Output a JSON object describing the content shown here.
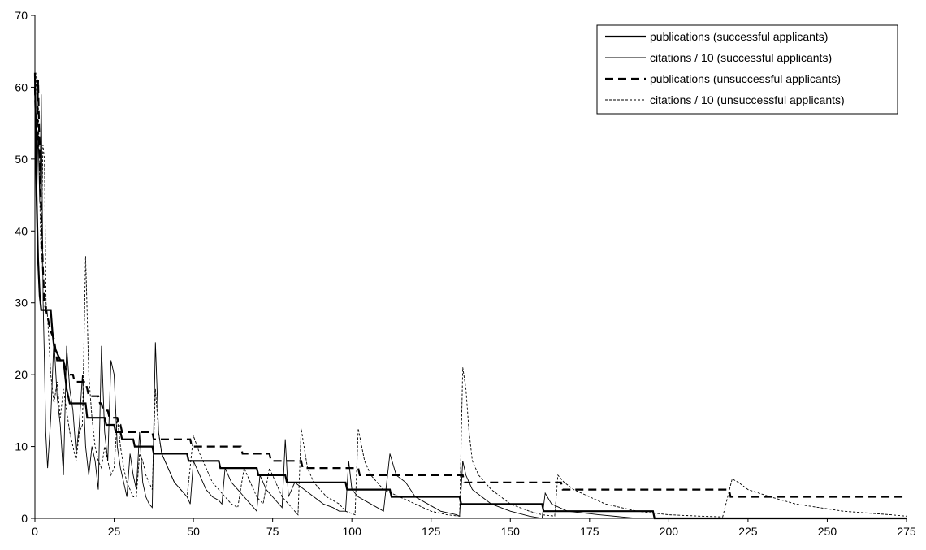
{
  "chart_data": {
    "type": "line",
    "title": "",
    "xlabel": "",
    "ylabel": "",
    "xlim": [
      0,
      275
    ],
    "ylim": [
      0,
      70
    ],
    "x_ticks": [
      "0",
      "25",
      "50",
      "75",
      "100",
      "125",
      "150",
      "175",
      "200",
      "225",
      "250",
      "275"
    ],
    "y_ticks": [
      "0",
      "10",
      "20",
      "30",
      "40",
      "50",
      "60",
      "70"
    ],
    "grid": false,
    "legend_position": "top-right",
    "series": [
      {
        "name": "publications (successful applicants)",
        "style": "solid-thick",
        "color": "#000000",
        "points": [
          [
            0,
            62
          ],
          [
            0.5,
            45
          ],
          [
            1,
            36
          ],
          [
            1.5,
            31
          ],
          [
            2,
            29
          ],
          [
            5,
            29
          ],
          [
            5.5,
            26
          ],
          [
            6,
            24
          ],
          [
            7,
            23
          ],
          [
            8,
            22
          ],
          [
            9,
            22
          ],
          [
            10,
            18
          ],
          [
            11,
            16
          ],
          [
            16,
            16
          ],
          [
            16.5,
            14
          ],
          [
            22,
            14
          ],
          [
            22.5,
            13
          ],
          [
            25,
            13
          ],
          [
            25.5,
            12
          ],
          [
            27,
            12
          ],
          [
            27.5,
            11
          ],
          [
            31,
            11
          ],
          [
            31.5,
            10
          ],
          [
            37,
            10
          ],
          [
            37.5,
            9
          ],
          [
            48,
            9
          ],
          [
            48.5,
            8
          ],
          [
            58,
            8
          ],
          [
            58.5,
            7
          ],
          [
            70,
            7
          ],
          [
            70.5,
            6
          ],
          [
            79,
            6
          ],
          [
            79.5,
            5
          ],
          [
            98,
            5
          ],
          [
            98.5,
            4
          ],
          [
            112,
            4
          ],
          [
            112.5,
            3
          ],
          [
            134,
            3
          ],
          [
            134.5,
            2
          ],
          [
            160,
            2
          ],
          [
            160.5,
            1
          ],
          [
            195,
            1
          ],
          [
            195.5,
            0
          ],
          [
            275,
            0
          ]
        ]
      },
      {
        "name": "citations / 10 (successful applicants)",
        "style": "solid-thin",
        "color": "#000000",
        "points": [
          [
            0,
            58
          ],
          [
            0.5,
            43
          ],
          [
            1,
            54
          ],
          [
            1.5,
            44
          ],
          [
            2,
            59
          ],
          [
            2.6,
            30
          ],
          [
            3,
            22
          ],
          [
            3.4,
            12
          ],
          [
            4,
            7
          ],
          [
            5,
            14
          ],
          [
            6,
            25
          ],
          [
            7,
            17
          ],
          [
            8,
            13
          ],
          [
            9,
            6
          ],
          [
            10,
            24
          ],
          [
            11,
            18
          ],
          [
            12,
            15
          ],
          [
            13,
            9
          ],
          [
            14,
            13
          ],
          [
            15,
            20
          ],
          [
            16,
            10
          ],
          [
            17,
            6
          ],
          [
            18,
            10
          ],
          [
            19,
            8
          ],
          [
            20,
            4
          ],
          [
            21,
            24
          ],
          [
            22,
            12
          ],
          [
            23,
            8
          ],
          [
            24,
            22
          ],
          [
            25,
            20
          ],
          [
            26,
            10
          ],
          [
            27,
            7
          ],
          [
            28,
            5
          ],
          [
            29,
            3
          ],
          [
            30,
            9
          ],
          [
            31,
            6
          ],
          [
            32,
            4
          ],
          [
            33,
            12
          ],
          [
            34,
            5
          ],
          [
            35,
            3
          ],
          [
            36,
            2
          ],
          [
            37,
            1.5
          ],
          [
            38,
            24.5
          ],
          [
            39,
            12
          ],
          [
            40,
            9
          ],
          [
            42,
            7
          ],
          [
            44,
            5
          ],
          [
            46,
            4
          ],
          [
            48,
            3
          ],
          [
            49,
            2
          ],
          [
            50,
            8
          ],
          [
            52,
            6
          ],
          [
            54,
            4
          ],
          [
            56,
            3
          ],
          [
            58,
            2.5
          ],
          [
            59,
            2
          ],
          [
            60,
            7
          ],
          [
            62,
            5
          ],
          [
            64,
            4
          ],
          [
            66,
            3
          ],
          [
            68,
            2
          ],
          [
            70,
            1
          ],
          [
            71,
            6
          ],
          [
            73,
            4
          ],
          [
            75,
            3
          ],
          [
            77,
            2
          ],
          [
            78,
            1.5
          ],
          [
            79,
            11
          ],
          [
            80,
            3
          ],
          [
            82,
            5
          ],
          [
            85,
            4
          ],
          [
            88,
            3
          ],
          [
            91,
            2
          ],
          [
            94,
            1.5
          ],
          [
            96,
            1
          ],
          [
            98,
            1
          ],
          [
            99,
            8
          ],
          [
            100,
            4
          ],
          [
            102,
            3
          ],
          [
            106,
            2
          ],
          [
            110,
            1
          ],
          [
            112,
            9
          ],
          [
            114,
            6
          ],
          [
            117,
            5
          ],
          [
            120,
            3
          ],
          [
            124,
            2
          ],
          [
            128,
            1
          ],
          [
            133,
            0.5
          ],
          [
            134,
            0.3
          ],
          [
            135,
            8
          ],
          [
            136,
            6
          ],
          [
            138,
            4
          ],
          [
            141,
            3
          ],
          [
            144,
            2
          ],
          [
            150,
            1
          ],
          [
            156,
            0.3
          ],
          [
            160,
            0
          ],
          [
            161,
            3.5
          ],
          [
            163,
            2
          ],
          [
            168,
            1
          ],
          [
            178,
            0.5
          ],
          [
            190,
            0
          ]
        ]
      },
      {
        "name": "publications (unsuccessful applicants)",
        "style": "dashed",
        "color": "#000000",
        "points": [
          [
            0,
            60
          ],
          [
            0.5,
            50
          ],
          [
            1,
            61
          ],
          [
            1.5,
            50
          ],
          [
            2,
            42
          ],
          [
            2.5,
            35
          ],
          [
            3,
            30
          ],
          [
            4,
            28
          ],
          [
            5,
            26
          ],
          [
            6,
            25
          ],
          [
            7,
            22
          ],
          [
            9,
            22
          ],
          [
            9.5,
            21
          ],
          [
            11,
            20
          ],
          [
            12,
            20
          ],
          [
            12.5,
            19
          ],
          [
            16,
            19
          ],
          [
            16.5,
            18
          ],
          [
            17,
            17
          ],
          [
            20,
            17
          ],
          [
            20.5,
            16
          ],
          [
            21,
            16
          ],
          [
            21.5,
            15
          ],
          [
            23,
            15
          ],
          [
            23.5,
            14
          ],
          [
            26,
            14
          ],
          [
            26.5,
            13
          ],
          [
            27,
            13
          ],
          [
            27.5,
            12
          ],
          [
            37,
            12
          ],
          [
            37.5,
            11
          ],
          [
            49,
            11
          ],
          [
            49.5,
            10
          ],
          [
            65,
            10
          ],
          [
            65.5,
            9
          ],
          [
            74,
            9
          ],
          [
            74.5,
            8
          ],
          [
            84,
            8
          ],
          [
            84.5,
            7
          ],
          [
            102,
            7
          ],
          [
            102.5,
            6
          ],
          [
            135,
            6
          ],
          [
            135.5,
            5
          ],
          [
            166,
            5
          ],
          [
            166.5,
            4
          ],
          [
            219,
            4
          ],
          [
            219.5,
            3
          ],
          [
            275,
            3
          ]
        ]
      },
      {
        "name": "citations / 10 (unsuccessful applicants)",
        "style": "dotted",
        "color": "#000000",
        "points": [
          [
            0,
            55
          ],
          [
            0.5,
            62
          ],
          [
            1,
            60
          ],
          [
            1.5,
            45
          ],
          [
            2,
            35
          ],
          [
            2.5,
            52
          ],
          [
            3,
            50
          ],
          [
            3.5,
            30
          ],
          [
            4,
            28
          ],
          [
            5,
            20
          ],
          [
            6,
            16
          ],
          [
            7,
            19
          ],
          [
            8,
            14
          ],
          [
            9,
            18
          ],
          [
            10,
            15
          ],
          [
            11,
            12
          ],
          [
            12,
            10
          ],
          [
            13,
            8
          ],
          [
            14,
            12
          ],
          [
            15,
            13
          ],
          [
            16,
            36.5
          ],
          [
            17,
            20
          ],
          [
            18,
            14
          ],
          [
            19,
            10
          ],
          [
            20,
            8
          ],
          [
            21,
            7
          ],
          [
            22,
            10
          ],
          [
            23,
            8
          ],
          [
            24,
            6
          ],
          [
            25,
            7
          ],
          [
            26,
            14
          ],
          [
            27,
            10
          ],
          [
            28,
            7
          ],
          [
            29,
            5
          ],
          [
            30,
            4
          ],
          [
            31,
            3
          ],
          [
            32,
            3
          ],
          [
            33,
            9
          ],
          [
            34,
            8
          ],
          [
            35,
            6
          ],
          [
            36,
            5
          ],
          [
            37,
            4
          ],
          [
            38,
            18
          ],
          [
            39,
            12
          ],
          [
            40,
            9
          ],
          [
            42,
            7
          ],
          [
            44,
            5
          ],
          [
            46,
            4
          ],
          [
            48,
            3
          ],
          [
            50,
            11.5
          ],
          [
            52,
            9
          ],
          [
            54,
            7
          ],
          [
            56,
            5
          ],
          [
            58,
            4
          ],
          [
            60,
            3
          ],
          [
            62,
            2
          ],
          [
            64,
            1.5
          ],
          [
            66,
            7
          ],
          [
            68,
            5
          ],
          [
            70,
            3
          ],
          [
            72,
            2
          ],
          [
            74,
            7
          ],
          [
            76,
            5
          ],
          [
            78,
            3
          ],
          [
            80,
            2
          ],
          [
            82,
            1
          ],
          [
            83,
            0.5
          ],
          [
            84,
            12.5
          ],
          [
            86,
            7
          ],
          [
            88,
            5
          ],
          [
            92,
            3
          ],
          [
            96,
            2
          ],
          [
            98,
            1
          ],
          [
            101,
            0.5
          ],
          [
            102,
            12.5
          ],
          [
            104,
            8
          ],
          [
            106,
            6
          ],
          [
            110,
            4
          ],
          [
            115,
            3
          ],
          [
            120,
            2
          ],
          [
            125,
            1
          ],
          [
            130,
            0.5
          ],
          [
            134,
            0.3
          ],
          [
            135,
            21
          ],
          [
            136,
            18
          ],
          [
            137,
            12
          ],
          [
            138,
            8
          ],
          [
            140,
            6
          ],
          [
            144,
            4
          ],
          [
            150,
            2
          ],
          [
            156,
            1
          ],
          [
            160,
            0.5
          ],
          [
            164,
            0.3
          ],
          [
            165,
            6
          ],
          [
            167,
            5
          ],
          [
            170,
            4
          ],
          [
            175,
            3
          ],
          [
            180,
            2
          ],
          [
            190,
            1
          ],
          [
            200,
            0.5
          ],
          [
            210,
            0.3
          ],
          [
            217,
            0.2
          ],
          [
            220,
            5.5
          ],
          [
            222,
            5
          ],
          [
            225,
            4
          ],
          [
            232,
            3
          ],
          [
            240,
            2
          ],
          [
            255,
            1
          ],
          [
            270,
            0.5
          ],
          [
            275,
            0.3
          ]
        ]
      }
    ]
  }
}
